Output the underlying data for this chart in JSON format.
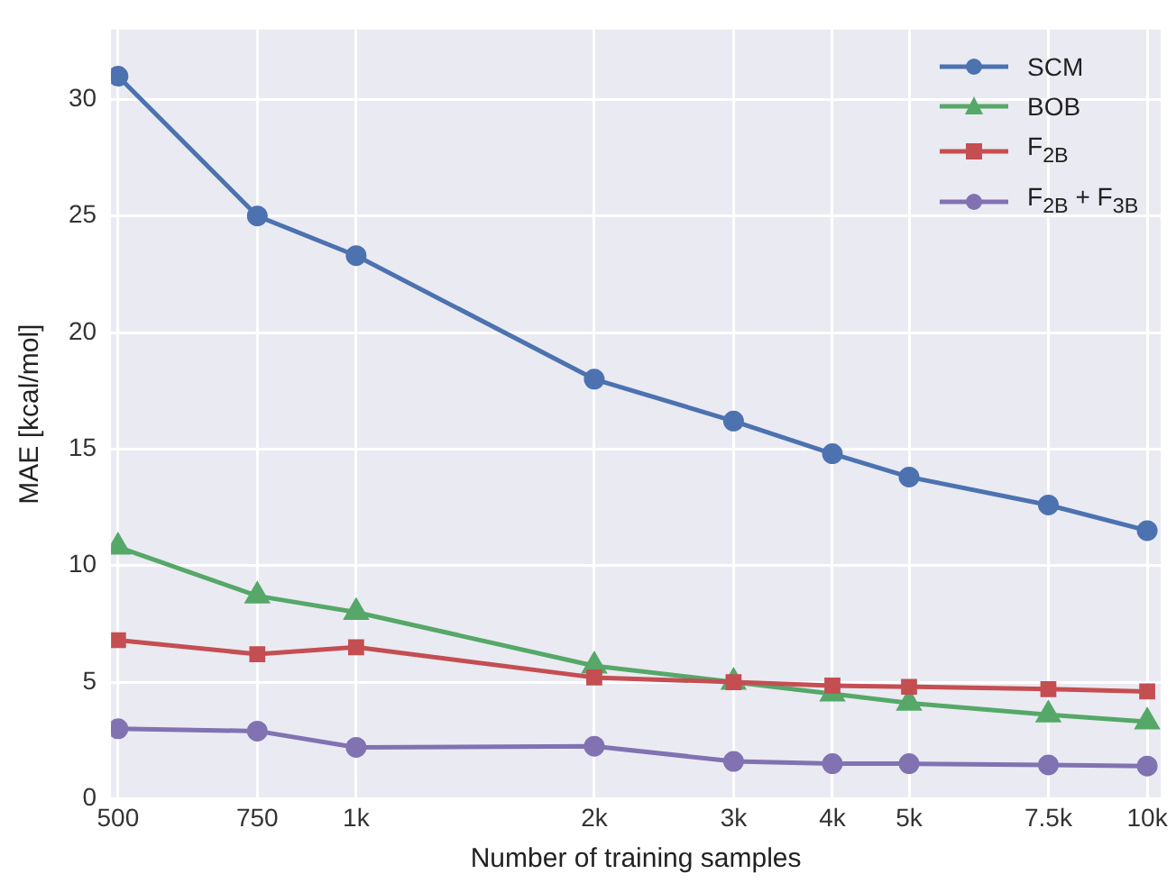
{
  "chart_data": {
    "type": "line",
    "xlabel": "Number of training samples",
    "ylabel": "MAE [kcal/mol]",
    "log": "x",
    "x": [
      500,
      750,
      1000,
      2000,
      3000,
      4000,
      5000,
      7500,
      10000
    ],
    "xlim": [
      490,
      10400
    ],
    "xticks": [
      500,
      750,
      {
        "value": 1000,
        "label": "1k"
      },
      {
        "value": 2000,
        "label": "2k"
      },
      {
        "value": 3000,
        "label": "3k"
      },
      {
        "value": 4000,
        "label": "4k"
      },
      {
        "value": 5000,
        "label": "5k"
      },
      {
        "value": 7500,
        "label": "7.5k"
      },
      {
        "value": 10000,
        "label": "10k"
      }
    ],
    "ylim": [
      0,
      33
    ],
    "yticks": [
      0,
      5,
      10,
      15,
      20,
      25,
      30
    ],
    "grid": true,
    "legend": "top right",
    "series": [
      {
        "name": "SCM",
        "color": "#4c72b0",
        "marker": "circle",
        "values": [
          31.0,
          25.0,
          23.3,
          18.0,
          16.2,
          14.8,
          13.8,
          12.6,
          11.5
        ]
      },
      {
        "name": "BOB",
        "color": "#55a868",
        "marker": "triangle",
        "values": [
          10.8,
          8.7,
          8.0,
          5.7,
          5.0,
          4.5,
          4.1,
          3.6,
          3.3
        ]
      },
      {
        "name": "F$_{2B}$",
        "color": "#c44e52",
        "marker": "square",
        "values": [
          6.8,
          6.2,
          6.5,
          5.2,
          5.0,
          4.85,
          4.8,
          4.7,
          4.6
        ]
      },
      {
        "name": "F$_{2B}$ + F$_{3B}$",
        "color": "#8172b2",
        "marker": "circle",
        "values": [
          3.0,
          2.9,
          2.2,
          2.25,
          1.6,
          1.5,
          1.5,
          1.45,
          1.4
        ]
      }
    ]
  }
}
